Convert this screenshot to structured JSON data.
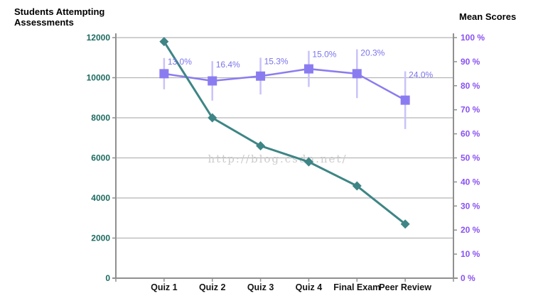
{
  "page": {
    "left_axis_title": "Students Attempting\nAssessments",
    "right_axis_title": "Mean Scores",
    "watermark": "http://blog.csdn.net/"
  },
  "colors": {
    "students_line": "#3E8585",
    "students_marker": "#3E8585",
    "students_text": "#1D6A60",
    "scores_line": "#8A7CF0",
    "scores_marker": "#8A7CF0",
    "scores_text": "#8A52F0",
    "error_bar": "#C9C3F9",
    "annotation_text": "#7B74EC",
    "x_label_text": "#141414",
    "grid": "#B5B5B5",
    "axis": "#909090",
    "watermark": "#CBCBCB"
  },
  "chart_data": {
    "type": "line",
    "title": "",
    "categories": [
      "Quiz 1",
      "Quiz 2",
      "Quiz 3",
      "Quiz 4",
      "Final Exam",
      "Peer Review"
    ],
    "series": [
      {
        "name": "Students Attempting Assessments",
        "axis": "left",
        "marker": "diamond",
        "values": [
          11800,
          8000,
          6600,
          5800,
          4600,
          2700
        ]
      },
      {
        "name": "Mean Scores",
        "axis": "right",
        "marker": "square",
        "values": [
          85,
          82,
          84,
          87,
          85,
          74
        ],
        "std_dev": [
          13.0,
          16.4,
          15.3,
          15.0,
          20.3,
          24.0
        ],
        "std_dev_labels": [
          "13.0%",
          "16.4%",
          "15.3%",
          "15.0%",
          "20.3%",
          "24.0%"
        ]
      }
    ],
    "left_axis": {
      "title": "Students Attempting Assessments",
      "min": 0,
      "max": 12000,
      "tick_step": 2000,
      "tick_labels": [
        "12000",
        "10000",
        "8000",
        "6000",
        "4000",
        "2000",
        "0"
      ]
    },
    "right_axis": {
      "title": "Mean Scores",
      "min": 0,
      "max": 100,
      "tick_step": 10,
      "tick_labels": [
        "100 %",
        "90 %",
        "80 %",
        "70 %",
        "60 %",
        "50 %",
        "40 %",
        "30 %",
        "20 %",
        "10 %",
        "0 %"
      ]
    },
    "grid": true,
    "legend_position": "none"
  }
}
